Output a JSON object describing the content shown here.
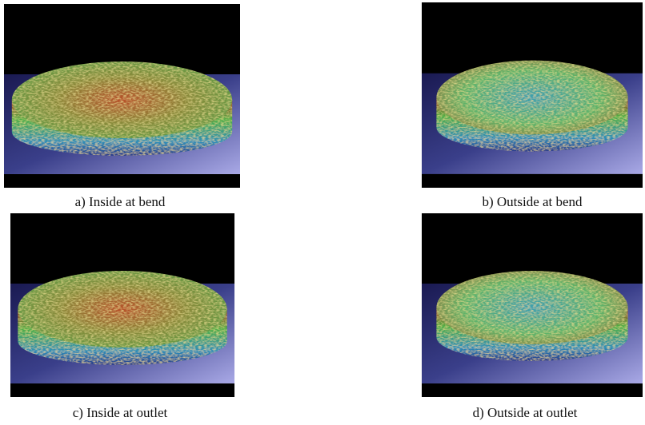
{
  "figure": {
    "panels": [
      {
        "caption": "a) Inside at bend"
      },
      {
        "caption": "b) Outside at bend"
      },
      {
        "caption": "c) Inside at outlet"
      },
      {
        "caption": "d) Outside at outlet"
      }
    ]
  }
}
